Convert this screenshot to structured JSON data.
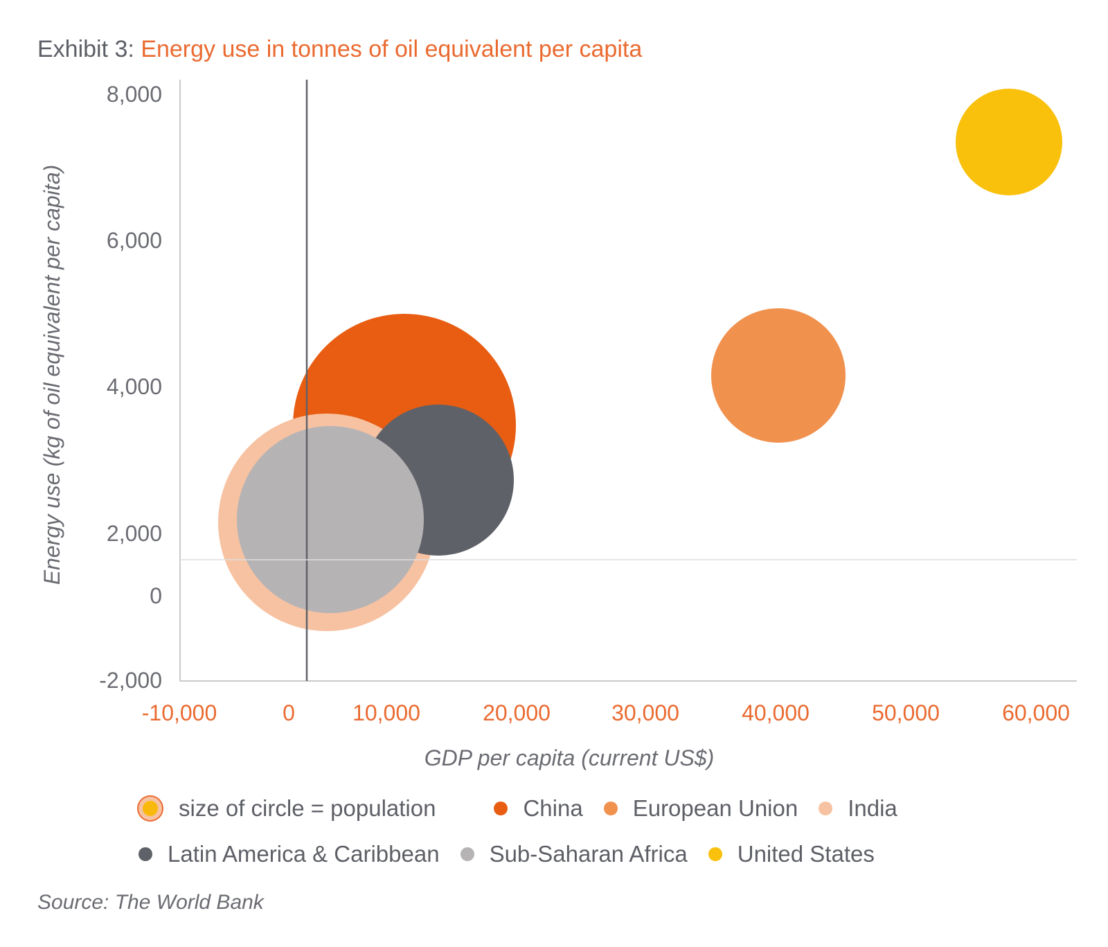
{
  "title": {
    "prefix": "Exhibit 3:",
    "text": "Energy use in tonnes of oil equivalent per capita"
  },
  "chart_data": {
    "type": "scatter",
    "xlabel": "GDP per capita (current US$)",
    "ylabel": "Energy use (kg of oil equivalent per capita)",
    "xlim": [
      -10000,
      60000
    ],
    "ylim": [
      -2000,
      8000
    ],
    "x_ticks": [
      -10000,
      0,
      10000,
      20000,
      30000,
      40000,
      50000,
      60000
    ],
    "x_tick_labels": [
      "-10,000",
      "0",
      "10,000",
      "20,000",
      "30,000",
      "40,000",
      "50,000",
      "60,000"
    ],
    "y_ticks": [
      -2000,
      0,
      2000,
      4000,
      6000,
      8000
    ],
    "y_tick_labels": [
      "-2,000",
      "0",
      "2,000",
      "4,000",
      "6,000",
      "8,000"
    ],
    "grid": false,
    "size_encoding": "population",
    "series": [
      {
        "name": "China",
        "color": "#e85d12",
        "x": 8000,
        "y": 3500,
        "size": 1390
      },
      {
        "name": "European Union",
        "color": "#f0914e",
        "x": 40000,
        "y": 4100,
        "size": 450
      },
      {
        "name": "India",
        "color": "#f7c2a2",
        "x": 3500,
        "y": 2000,
        "size": 1390
      },
      {
        "name": "Latin America & Caribbean",
        "color": "#5f6168",
        "x": 12000,
        "y": 2700,
        "size": 600
      },
      {
        "name": "Sub-Saharan Africa",
        "color": "#b6b3b5",
        "x": 3700,
        "y": 2100,
        "size": 1100
      },
      {
        "name": "United States",
        "color": "#f9c00c",
        "x": 55000,
        "y": 7200,
        "size": 330
      }
    ]
  },
  "legend": {
    "size_note": "size of circle = population",
    "order_row1": [
      "China",
      "European Union",
      "India"
    ],
    "order_row2": [
      "Latin America & Caribbean",
      "Sub-Saharan Africa",
      "United States"
    ]
  },
  "source": "Source: The World Bank"
}
